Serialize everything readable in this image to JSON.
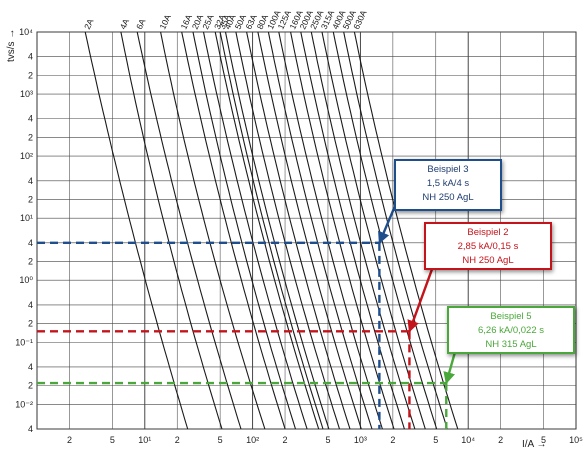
{
  "chart_data": {
    "type": "line",
    "title": "",
    "xlabel": "I/A →",
    "ylabel": "tvs/s →",
    "x_scale": "log",
    "y_scale": "log",
    "xlim": [
      1,
      100000
    ],
    "ylim": [
      0.004,
      10000
    ],
    "grid": true,
    "x_tick_labels": [
      {
        "v": 2,
        "t": "2"
      },
      {
        "v": 5,
        "t": "5"
      },
      {
        "v": 10,
        "t": "10¹"
      },
      {
        "v": 20,
        "t": "2"
      },
      {
        "v": 50,
        "t": "5"
      },
      {
        "v": 100,
        "t": "10²"
      },
      {
        "v": 200,
        "t": "2"
      },
      {
        "v": 500,
        "t": "5"
      },
      {
        "v": 1000,
        "t": "10³"
      },
      {
        "v": 2000,
        "t": "2"
      },
      {
        "v": 5000,
        "t": "5"
      },
      {
        "v": 10000,
        "t": "10⁴"
      },
      {
        "v": 20000,
        "t": "2"
      },
      {
        "v": 50000,
        "t": "5"
      },
      {
        "v": 100000,
        "t": "10⁵"
      }
    ],
    "y_tick_labels": [
      {
        "v": 10000,
        "t": "10⁴"
      },
      {
        "v": 4000,
        "t": "4"
      },
      {
        "v": 2000,
        "t": "2"
      },
      {
        "v": 1000,
        "t": "10³"
      },
      {
        "v": 400,
        "t": "4"
      },
      {
        "v": 200,
        "t": "2"
      },
      {
        "v": 100,
        "t": "10²"
      },
      {
        "v": 40,
        "t": "4"
      },
      {
        "v": 20,
        "t": "2"
      },
      {
        "v": 10,
        "t": "10¹"
      },
      {
        "v": 4,
        "t": "4"
      },
      {
        "v": 2,
        "t": "2"
      },
      {
        "v": 1,
        "t": "10⁰"
      },
      {
        "v": 0.4,
        "t": "4"
      },
      {
        "v": 0.2,
        "t": "2"
      },
      {
        "v": 0.1,
        "t": "10⁻¹"
      },
      {
        "v": 0.04,
        "t": "4"
      },
      {
        "v": 0.02,
        "t": "2"
      },
      {
        "v": 0.01,
        "t": "10⁻²"
      },
      {
        "v": 0.004,
        "t": "4"
      }
    ],
    "series": [
      {
        "rating": "2A",
        "x_top": 2.8,
        "x_mid": 7,
        "x_bottom": 25
      },
      {
        "rating": "4A",
        "x_top": 6,
        "x_mid": 14,
        "x_bottom": 52
      },
      {
        "rating": "6A",
        "x_top": 8.5,
        "x_mid": 21,
        "x_bottom": 78
      },
      {
        "rating": "10A",
        "x_top": 14,
        "x_mid": 33,
        "x_bottom": 130
      },
      {
        "rating": "16A",
        "x_top": 22,
        "x_mid": 53,
        "x_bottom": 200
      },
      {
        "rating": "20A",
        "x_top": 28,
        "x_mid": 66,
        "x_bottom": 250
      },
      {
        "rating": "25A",
        "x_top": 35,
        "x_mid": 84,
        "x_bottom": 320
      },
      {
        "rating": "32A",
        "x_top": 45,
        "x_mid": 107,
        "x_bottom": 410
      },
      {
        "rating": "35A",
        "x_top": 50,
        "x_mid": 117,
        "x_bottom": 450
      },
      {
        "rating": "40A",
        "x_top": 56,
        "x_mid": 132,
        "x_bottom": 510
      },
      {
        "rating": "50A",
        "x_top": 70,
        "x_mid": 166,
        "x_bottom": 640
      },
      {
        "rating": "63A",
        "x_top": 88,
        "x_mid": 210,
        "x_bottom": 800
      },
      {
        "rating": "80A",
        "x_top": 112,
        "x_mid": 265,
        "x_bottom": 1020
      },
      {
        "rating": "100A",
        "x_top": 140,
        "x_mid": 332,
        "x_bottom": 1280
      },
      {
        "rating": "125A",
        "x_top": 175,
        "x_mid": 415,
        "x_bottom": 1600
      },
      {
        "rating": "160A",
        "x_top": 225,
        "x_mid": 530,
        "x_bottom": 2050
      },
      {
        "rating": "200A",
        "x_top": 280,
        "x_mid": 665,
        "x_bottom": 2560
      },
      {
        "rating": "250A",
        "x_top": 350,
        "x_mid": 830,
        "x_bottom": 3200
      },
      {
        "rating": "315A",
        "x_top": 440,
        "x_mid": 1050,
        "x_bottom": 4000
      },
      {
        "rating": "400A",
        "x_top": 560,
        "x_mid": 1330,
        "x_bottom": 5100
      },
      {
        "rating": "500A",
        "x_top": 700,
        "x_mid": 1660,
        "x_bottom": 6400
      },
      {
        "rating": "630A",
        "x_top": 880,
        "x_mid": 2100,
        "x_bottom": 8000
      }
    ],
    "annotations": [
      {
        "id": "beispiel-3",
        "title": "Beispiel 3",
        "line1": "1,5 kA/4 s",
        "line2": "NH 250 AgL",
        "color": "#1f4e8c",
        "x": 1500,
        "y": 4,
        "arrow_from": {
          "x": 2900,
          "y": 60
        }
      },
      {
        "id": "beispiel-2",
        "title": "Beispiel 2",
        "line1": "2,85 kA/0,15 s",
        "line2": "NH 250 AgL",
        "color": "#c4141b",
        "x": 2850,
        "y": 0.15,
        "arrow_from": {
          "x": 5000,
          "y": 2.2
        }
      },
      {
        "id": "beispiel-5",
        "title": "Beispiel 5",
        "line1": "6,26 kA/0,022 s",
        "line2": "NH 315 AgL",
        "color": "#4aa83a",
        "x": 6260,
        "y": 0.022,
        "arrow_from": {
          "x": 8000,
          "y": 0.1
        }
      }
    ]
  }
}
